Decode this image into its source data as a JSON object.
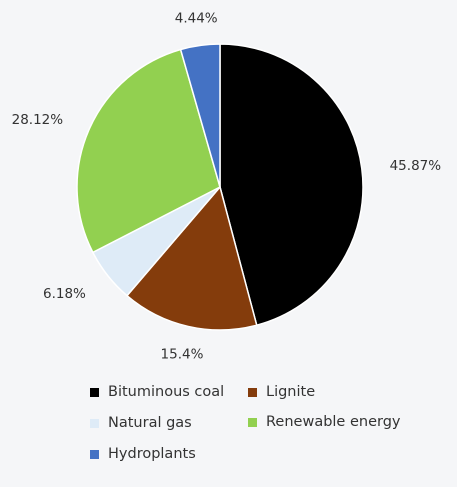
{
  "chart_data": {
    "type": "pie",
    "title": "",
    "slices": [
      {
        "name": "Bituminous coal",
        "value": 45.87,
        "label": "45.87%",
        "color": "#000000"
      },
      {
        "name": "Lignite",
        "value": 15.4,
        "label": "15.4%",
        "color": "#843c0c"
      },
      {
        "name": "Natural gas",
        "value": 6.18,
        "label": "6.18%",
        "color": "#deebf7"
      },
      {
        "name": "Renewable energy",
        "value": 28.12,
        "label": "28.12%",
        "color": "#92d050"
      },
      {
        "name": "Hydroplants",
        "value": 4.44,
        "label": "4.44%",
        "color": "#4472c4"
      }
    ],
    "legend": {
      "placement": "bottom",
      "items": [
        {
          "name": "Bituminous coal",
          "color": "#000000"
        },
        {
          "name": "Lignite",
          "color": "#843c0c"
        },
        {
          "name": "Natural gas",
          "color": "#deebf7"
        },
        {
          "name": "Renewable energy",
          "color": "#92d050"
        },
        {
          "name": "Hydroplants",
          "color": "#4472c4"
        }
      ]
    }
  }
}
